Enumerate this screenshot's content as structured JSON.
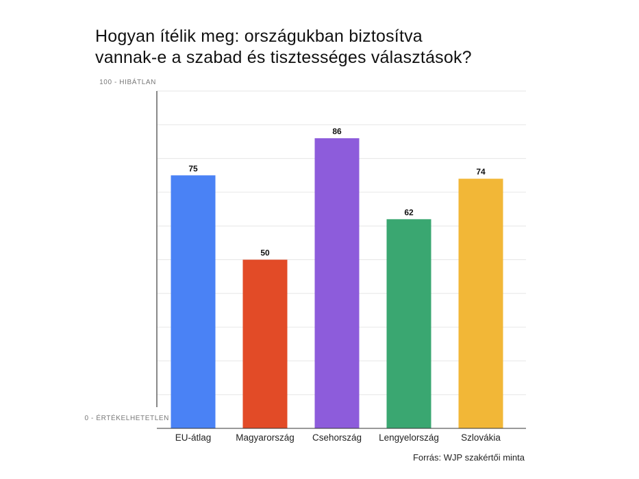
{
  "chart_data": {
    "type": "bar",
    "title_lines": [
      "Hogyan ítélik meg: országukban biztosítva",
      "vannak-e a szabad és tisztességes választások?"
    ],
    "categories": [
      "EU-átlag",
      "Magyarország",
      "Csehország",
      "Lengyelország",
      "Szlovákia"
    ],
    "values": [
      75,
      50,
      86,
      62,
      74
    ],
    "colors": [
      "#4a82f5",
      "#e24b27",
      "#8d5cdb",
      "#3aa771",
      "#f2b737"
    ],
    "ylim": [
      0,
      100
    ],
    "y_top_label": "100 - HIBÁTLAN",
    "y_bottom_label": "0 - ÉRTÉKELHETETLEN",
    "grid": true,
    "source": "Forrás: WJP szakértői minta"
  }
}
